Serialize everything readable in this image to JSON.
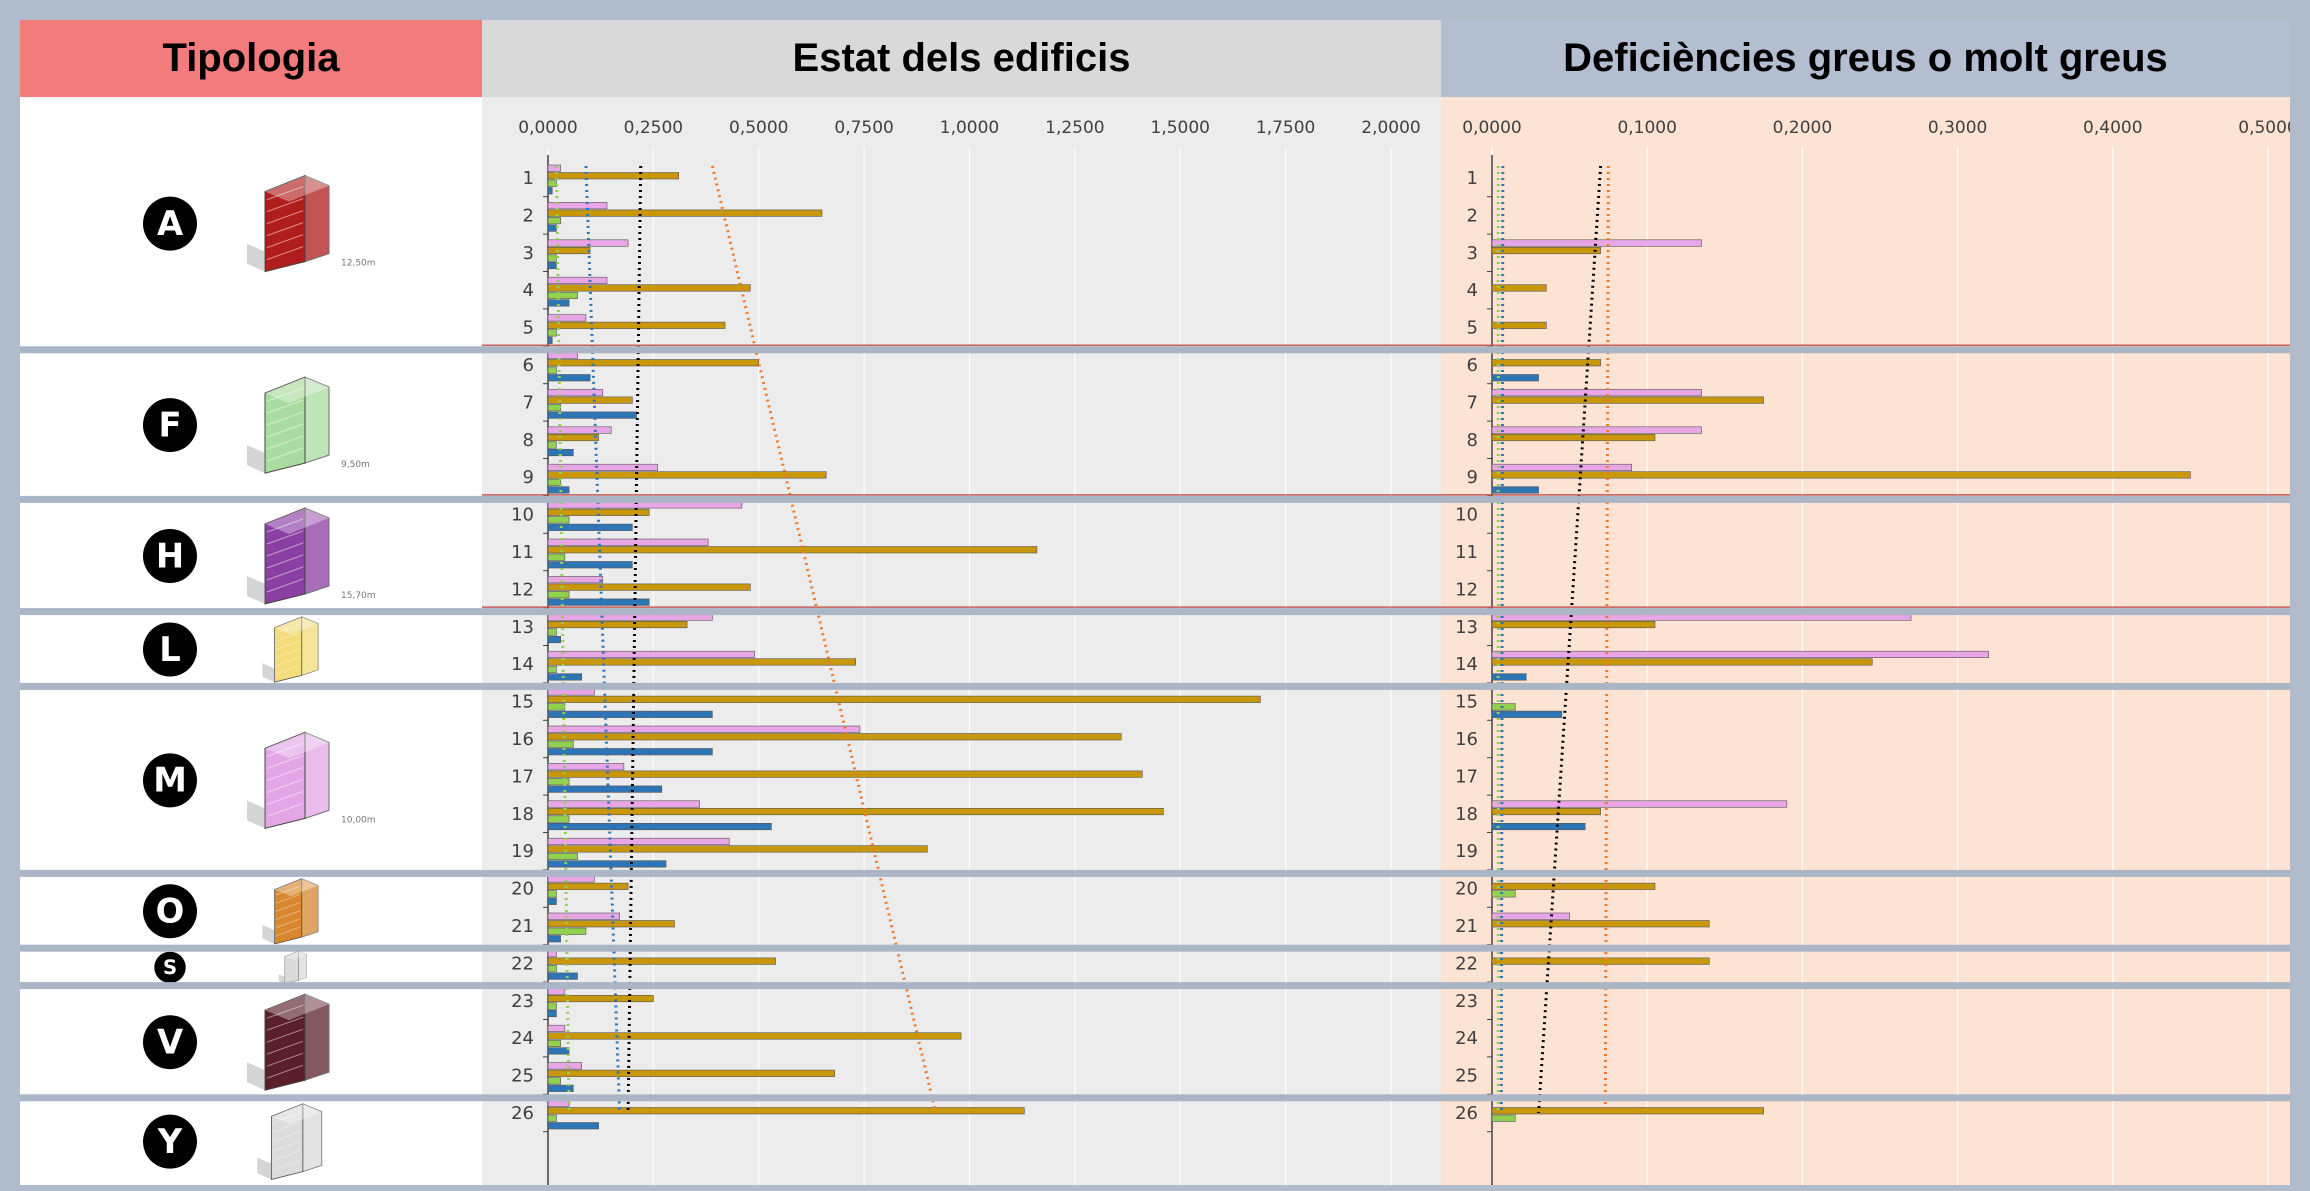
{
  "headers": {
    "typology": "Tipologia",
    "state": "Estat dels edificis",
    "deficiencies": "Deficiències greus o molt greus"
  },
  "colors": {
    "typology_header": "#f47b7b",
    "state_header": "#d9d9d9",
    "deficiencies_header": "#b3bfd0",
    "state_plot_bg": "#ececec",
    "deficiencies_plot_bg": "#fde3d3",
    "series_pink": "#e9a6e6",
    "series_gold": "#c8970c",
    "series_green": "#92d050",
    "series_blue": "#2e75b6"
  },
  "typologies": [
    {
      "letter": "A",
      "buildings": [
        1,
        2,
        3,
        4,
        5
      ],
      "model_color": "#b11c1c",
      "dimension": "12,50m"
    },
    {
      "letter": "F",
      "buildings": [
        6,
        7,
        8,
        9
      ],
      "model_color": "#a9dca0",
      "dimension": "9,50m"
    },
    {
      "letter": "H",
      "buildings": [
        10,
        11,
        12
      ],
      "model_color": "#8b3ea3",
      "dimension": "15,70m"
    },
    {
      "letter": "L",
      "buildings": [
        13,
        14
      ],
      "model_color": "#f3dc7a",
      "dimension": ""
    },
    {
      "letter": "M",
      "buildings": [
        15,
        16,
        17,
        18,
        19
      ],
      "model_color": "#e2a6e6",
      "dimension": "10,00m"
    },
    {
      "letter": "O",
      "buildings": [
        20,
        21
      ],
      "model_color": "#d8872f",
      "dimension": ""
    },
    {
      "letter": "S",
      "buildings": [
        22
      ],
      "model_color": "#d9d9d9",
      "dimension": ""
    },
    {
      "letter": "V",
      "buildings": [
        23,
        24,
        25
      ],
      "model_color": "#5a1f2a",
      "dimension": ""
    },
    {
      "letter": "Y",
      "buildings": [
        26
      ],
      "model_color": "#dcdcdc",
      "dimension": ""
    }
  ],
  "chart_data": [
    {
      "type": "bar",
      "orientation": "horizontal",
      "title": "Estat dels edificis",
      "categories": [
        "1",
        "2",
        "3",
        "4",
        "5",
        "6",
        "7",
        "8",
        "9",
        "10",
        "11",
        "12",
        "13",
        "14",
        "15",
        "16",
        "17",
        "18",
        "19",
        "20",
        "21",
        "22",
        "23",
        "24",
        "25",
        "26"
      ],
      "xlim": [
        0,
        2.0
      ],
      "tick_labels": [
        "0,0000",
        "0,2500",
        "0,5000",
        "0,7500",
        "1,0000",
        "1,2500",
        "1,5000",
        "1,7500",
        "2,0000"
      ],
      "grid": true,
      "series": [
        {
          "color": "#e9a6e6",
          "values": [
            0.03,
            0.14,
            0.19,
            0.14,
            0.09,
            0.07,
            0.13,
            0.15,
            0.26,
            0.46,
            0.38,
            0.13,
            0.39,
            0.49,
            0.11,
            0.74,
            0.18,
            0.36,
            0.43,
            0.11,
            0.17,
            0.02,
            0.04,
            0.04,
            0.08,
            0.05
          ]
        },
        {
          "color": "#c8970c",
          "values": [
            0.31,
            0.65,
            0.1,
            0.48,
            0.42,
            0.5,
            0.2,
            0.12,
            0.66,
            0.24,
            1.16,
            0.48,
            0.33,
            0.73,
            1.69,
            1.36,
            1.41,
            1.46,
            0.9,
            0.19,
            0.3,
            0.54,
            0.25,
            0.98,
            0.68,
            1.13
          ]
        },
        {
          "color": "#92d050",
          "values": [
            0.02,
            0.03,
            0.02,
            0.07,
            0.02,
            0.02,
            0.03,
            0.02,
            0.03,
            0.05,
            0.04,
            0.05,
            0.02,
            0.02,
            0.04,
            0.06,
            0.05,
            0.05,
            0.07,
            0.02,
            0.09,
            0.02,
            0.02,
            0.03,
            0.03,
            0.02
          ]
        },
        {
          "color": "#2e75b6",
          "values": [
            0.01,
            0.02,
            0.02,
            0.05,
            0.01,
            0.1,
            0.21,
            0.06,
            0.05,
            0.2,
            0.2,
            0.24,
            0.03,
            0.08,
            0.39,
            0.39,
            0.27,
            0.53,
            0.28,
            0.02,
            0.03,
            0.07,
            0.02,
            0.05,
            0.06,
            0.12
          ]
        }
      ],
      "trend_lines": [
        {
          "color": "#f07a2a",
          "from": {
            "category": "1",
            "x": 0.39
          },
          "to": {
            "category": "26",
            "x": 0.92
          }
        },
        {
          "color": "#000000",
          "from": {
            "category": "1",
            "x": 0.22
          },
          "to": {
            "category": "26",
            "x": 0.19
          }
        },
        {
          "color": "#2e75b6",
          "from": {
            "category": "1",
            "x": 0.09
          },
          "to": {
            "category": "26",
            "x": 0.17
          }
        },
        {
          "color": "#92d050",
          "from": {
            "category": "1",
            "x": 0.02
          },
          "to": {
            "category": "26",
            "x": 0.05
          }
        }
      ]
    },
    {
      "type": "bar",
      "orientation": "horizontal",
      "title": "Deficiències greus o molt greus",
      "categories": [
        "1",
        "2",
        "3",
        "4",
        "5",
        "6",
        "7",
        "8",
        "9",
        "10",
        "11",
        "12",
        "13",
        "14",
        "15",
        "16",
        "17",
        "18",
        "19",
        "20",
        "21",
        "22",
        "23",
        "24",
        "25",
        "26"
      ],
      "xlim": [
        0,
        0.5
      ],
      "tick_labels": [
        "0,0000",
        "0,1000",
        "0,2000",
        "0,3000",
        "0,4000",
        "0,5000"
      ],
      "grid": true,
      "series": [
        {
          "color": "#e9a6e6",
          "values": [
            0,
            0,
            0.135,
            0,
            0,
            0,
            0.135,
            0.135,
            0.09,
            0,
            0,
            0,
            0.27,
            0.32,
            0,
            0,
            0,
            0.19,
            0,
            0,
            0.05,
            0,
            0,
            0,
            0,
            0
          ]
        },
        {
          "color": "#c8970c",
          "values": [
            0,
            0,
            0.07,
            0.035,
            0.035,
            0.07,
            0.175,
            0.105,
            0.45,
            0,
            0,
            0,
            0.105,
            0.245,
            0,
            0,
            0,
            0.07,
            0,
            0.105,
            0.14,
            0.14,
            0,
            0,
            0,
            0.175
          ]
        },
        {
          "color": "#92d050",
          "values": [
            0,
            0,
            0,
            0,
            0,
            0,
            0,
            0,
            0,
            0,
            0,
            0,
            0,
            0,
            0.015,
            0,
            0,
            0,
            0,
            0.015,
            0,
            0,
            0,
            0,
            0,
            0.015
          ]
        },
        {
          "color": "#2e75b6",
          "values": [
            0,
            0,
            0,
            0,
            0,
            0.03,
            0,
            0,
            0.03,
            0,
            0,
            0,
            0,
            0.022,
            0.045,
            0,
            0,
            0.06,
            0,
            0,
            0,
            0,
            0,
            0,
            0,
            0
          ]
        }
      ],
      "trend_lines": [
        {
          "color": "#000000",
          "from": {
            "category": "1",
            "x": 0.07
          },
          "to": {
            "category": "26",
            "x": 0.03
          }
        },
        {
          "color": "#f07a2a",
          "from": {
            "category": "1",
            "x": 0.075
          },
          "to": {
            "category": "26",
            "x": 0.073
          }
        },
        {
          "color": "#2e75b6",
          "from": {
            "category": "1",
            "x": 0.007
          },
          "to": {
            "category": "26",
            "x": 0.006
          }
        },
        {
          "color": "#92d050",
          "from": {
            "category": "1",
            "x": 0.004
          },
          "to": {
            "category": "26",
            "x": 0.004
          }
        }
      ]
    }
  ]
}
